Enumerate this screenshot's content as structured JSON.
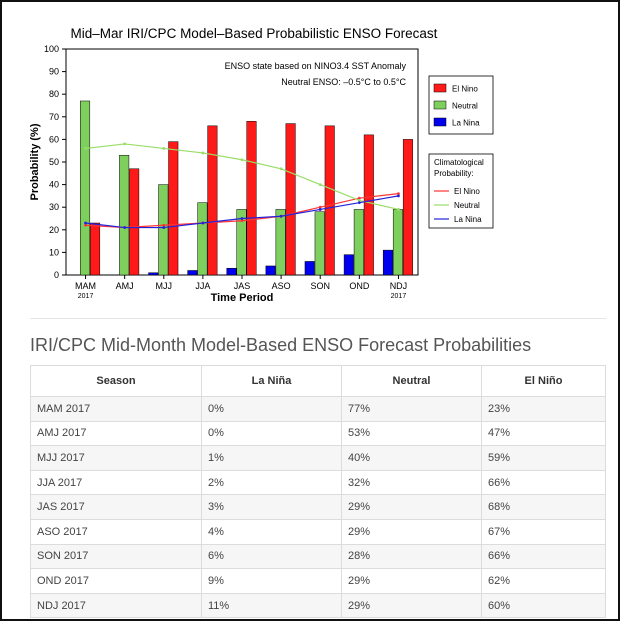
{
  "chart_data": {
    "type": "bar",
    "title": "Mid–Mar IRI/CPC Model–Based Probabilistic ENSO Forecast",
    "xlabel": "Time Period",
    "ylabel": "Probability (%)",
    "ylim": [
      0,
      100
    ],
    "yticks": [
      0,
      10,
      20,
      30,
      40,
      50,
      60,
      70,
      80,
      90,
      100
    ],
    "categories": [
      "MAM",
      "AMJ",
      "MJJ",
      "JJA",
      "JAS",
      "ASO",
      "SON",
      "OND",
      "NDJ"
    ],
    "category_sublabels": [
      "2017",
      "",
      "",
      "",
      "",
      "",
      "",
      "",
      "2017"
    ],
    "annotation_1": "ENSO state based on NINO3.4 SST Anomaly",
    "annotation_2": "Neutral ENSO: –0.5°C to 0.5°C",
    "series": [
      {
        "name": "La Nina",
        "color": "#0000ee",
        "values": [
          0,
          0,
          1,
          2,
          3,
          4,
          6,
          9,
          11
        ]
      },
      {
        "name": "Neutral",
        "color": "#7fcf5f",
        "values": [
          77,
          53,
          40,
          32,
          29,
          29,
          28,
          29,
          29
        ]
      },
      {
        "name": "El Nino",
        "color": "#ff1a1a",
        "values": [
          23,
          47,
          59,
          66,
          68,
          67,
          66,
          62,
          60
        ]
      }
    ],
    "climatology_title": "Climatological Probability:",
    "climatology": [
      {
        "name": "El Nino",
        "color": "#ff3333",
        "values": [
          22,
          21,
          22,
          23,
          24,
          26,
          30,
          34,
          36
        ]
      },
      {
        "name": "Neutral",
        "color": "#99dd66",
        "values": [
          56,
          58,
          56,
          54,
          51,
          47,
          40,
          33,
          29
        ]
      },
      {
        "name": "La Nina",
        "color": "#2222dd",
        "values": [
          23,
          21,
          21,
          23,
          25,
          26,
          29,
          32,
          35
        ]
      }
    ],
    "legend_placement": "right"
  },
  "table": {
    "title": "IRI/CPC Mid-Month Model-Based ENSO Forecast Probabilities",
    "headers": [
      "Season",
      "La Niña",
      "Neutral",
      "El Niño"
    ],
    "rows": [
      [
        "MAM 2017",
        "0%",
        "77%",
        "23%"
      ],
      [
        "AMJ 2017",
        "0%",
        "53%",
        "47%"
      ],
      [
        "MJJ 2017",
        "1%",
        "40%",
        "59%"
      ],
      [
        "JJA 2017",
        "2%",
        "32%",
        "66%"
      ],
      [
        "JAS 2017",
        "3%",
        "29%",
        "68%"
      ],
      [
        "ASO 2017",
        "4%",
        "29%",
        "67%"
      ],
      [
        "SON 2017",
        "6%",
        "28%",
        "66%"
      ],
      [
        "OND 2017",
        "9%",
        "29%",
        "62%"
      ],
      [
        "NDJ 2017",
        "11%",
        "29%",
        "60%"
      ]
    ]
  }
}
